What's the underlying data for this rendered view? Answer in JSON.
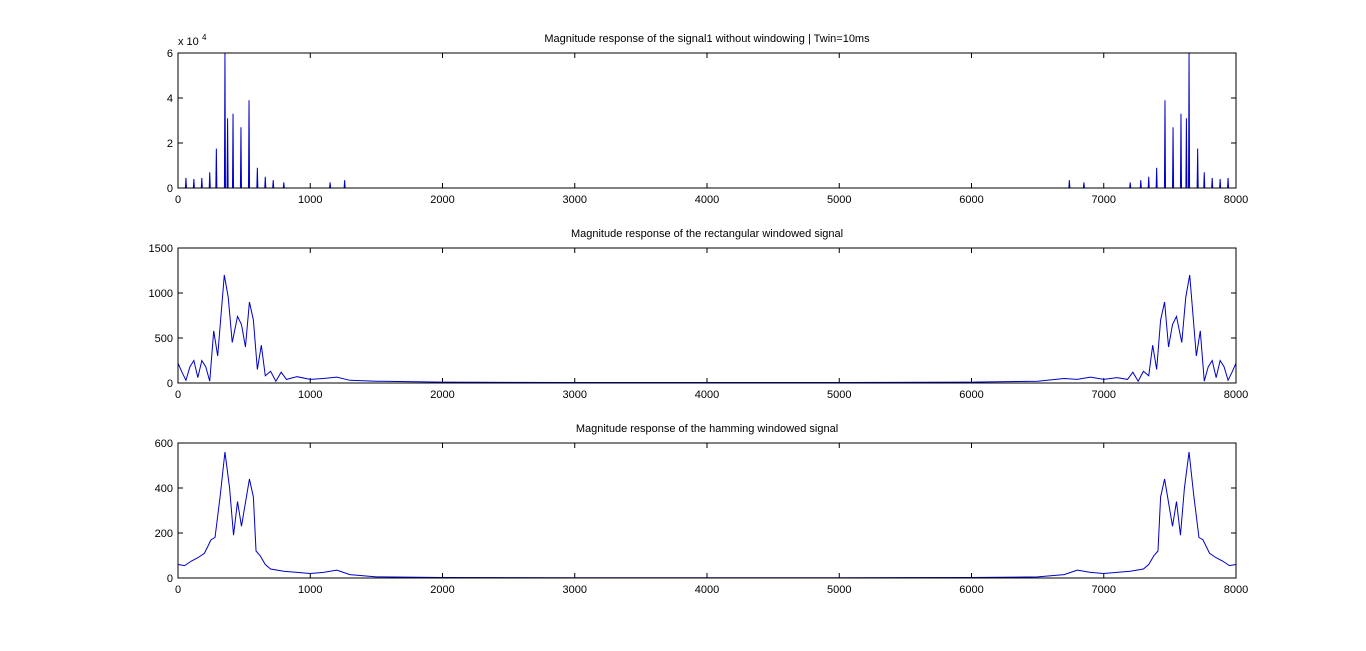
{
  "chart_data": [
    {
      "type": "line",
      "title": "Magnitude response of the signal1 without windowing | Twin=10ms",
      "y_multiplier": "x 10",
      "y_exponent": "4",
      "color": "#0000c8",
      "xlim": [
        0,
        8000
      ],
      "xticks": [
        0,
        1000,
        2000,
        3000,
        4000,
        5000,
        6000,
        7000,
        8000
      ],
      "ylim": [
        0,
        6
      ],
      "yticks": [
        0,
        2,
        4,
        6
      ],
      "x": [
        0,
        56,
        60,
        64,
        116,
        120,
        124,
        176,
        180,
        184,
        236,
        240,
        244,
        286,
        290,
        294,
        351,
        355,
        359,
        371,
        375,
        379,
        412,
        416,
        420,
        472,
        476,
        480,
        533,
        537,
        541,
        596,
        600,
        604,
        656,
        660,
        664,
        716,
        720,
        724,
        796,
        800,
        804,
        1146,
        1150,
        1154,
        1256,
        1260,
        1264,
        6736,
        6740,
        6744,
        6846,
        6850,
        6854,
        7196,
        7200,
        7204,
        7276,
        7280,
        7284,
        7336,
        7340,
        7344,
        7396,
        7400,
        7404,
        7459,
        7463,
        7467,
        7520,
        7524,
        7528,
        7580,
        7584,
        7588,
        7621,
        7625,
        7629,
        7641,
        7645,
        7649,
        7706,
        7710,
        7714,
        7756,
        7760,
        7764,
        7816,
        7820,
        7824,
        7876,
        7880,
        7884,
        7936,
        7940,
        7944,
        8000
      ],
      "values": [
        0,
        0,
        0.45,
        0,
        0,
        0.4,
        0,
        0,
        0.45,
        0,
        0,
        0.7,
        0,
        0,
        1.75,
        0,
        0,
        6,
        0,
        0,
        3.1,
        0,
        0,
        3.3,
        0,
        0,
        2.7,
        0,
        0,
        3.9,
        0,
        0,
        0.9,
        0,
        0,
        0.5,
        0,
        0,
        0.35,
        0,
        0,
        0.25,
        0,
        0,
        0.25,
        0,
        0,
        0.35,
        0,
        0,
        0.35,
        0,
        0,
        0.25,
        0,
        0,
        0.25,
        0,
        0,
        0.35,
        0,
        0,
        0.5,
        0,
        0,
        0.9,
        0,
        0,
        3.9,
        0,
        0,
        2.7,
        0,
        0,
        3.3,
        0,
        0,
        3.1,
        0,
        0,
        6,
        0,
        0,
        1.75,
        0,
        0,
        0.7,
        0,
        0,
        0.45,
        0,
        0,
        0.4,
        0,
        0,
        0.45,
        0,
        0
      ]
    },
    {
      "type": "line",
      "title": "Magnitude response of the rectangular windowed signal",
      "color": "#0000c8",
      "xlim": [
        0,
        8000
      ],
      "xticks": [
        0,
        1000,
        2000,
        3000,
        4000,
        5000,
        6000,
        7000,
        8000
      ],
      "ylim": [
        0,
        1500
      ],
      "yticks": [
        0,
        500,
        1000,
        1500
      ],
      "x": [
        0,
        30,
        60,
        90,
        120,
        150,
        180,
        210,
        240,
        270,
        300,
        350,
        380,
        410,
        450,
        480,
        510,
        540,
        570,
        600,
        630,
        660,
        700,
        740,
        780,
        820,
        900,
        1000,
        1100,
        1200,
        1300,
        1500,
        2000,
        3000,
        4000,
        5000,
        6000,
        6500,
        6700,
        6800,
        6900,
        7000,
        7100,
        7180,
        7220,
        7260,
        7300,
        7340,
        7370,
        7400,
        7430,
        7460,
        7490,
        7520,
        7550,
        7590,
        7620,
        7650,
        7700,
        7730,
        7760,
        7790,
        7820,
        7850,
        7880,
        7910,
        7940,
        7970,
        8000
      ],
      "values": [
        220,
        120,
        30,
        180,
        250,
        60,
        250,
        180,
        20,
        580,
        300,
        1200,
        950,
        450,
        740,
        650,
        400,
        900,
        700,
        150,
        420,
        80,
        130,
        20,
        120,
        40,
        70,
        40,
        50,
        65,
        30,
        20,
        10,
        5,
        5,
        5,
        10,
        20,
        50,
        40,
        65,
        40,
        60,
        40,
        120,
        20,
        130,
        80,
        420,
        150,
        700,
        900,
        400,
        650,
        740,
        450,
        950,
        1200,
        300,
        580,
        20,
        180,
        250,
        60,
        250,
        180,
        30,
        120,
        220
      ]
    },
    {
      "type": "line",
      "title": "Magnitude response of the hamming windowed signal",
      "color": "#0000c8",
      "xlim": [
        0,
        8000
      ],
      "xticks": [
        0,
        1000,
        2000,
        3000,
        4000,
        5000,
        6000,
        7000,
        8000
      ],
      "ylim": [
        0,
        600
      ],
      "yticks": [
        0,
        200,
        400,
        600
      ],
      "x": [
        0,
        50,
        100,
        150,
        200,
        250,
        280,
        320,
        355,
        390,
        420,
        450,
        480,
        540,
        570,
        590,
        620,
        660,
        700,
        800,
        900,
        1000,
        1100,
        1200,
        1300,
        1500,
        2000,
        3000,
        4000,
        5000,
        6000,
        6500,
        6700,
        6800,
        6900,
        7000,
        7100,
        7200,
        7300,
        7340,
        7380,
        7410,
        7430,
        7460,
        7520,
        7550,
        7580,
        7610,
        7645,
        7680,
        7720,
        7750,
        7800,
        7850,
        7900,
        7950,
        8000
      ],
      "values": [
        60,
        55,
        75,
        90,
        110,
        170,
        180,
        370,
        560,
        400,
        190,
        340,
        230,
        440,
        360,
        120,
        100,
        60,
        40,
        30,
        25,
        20,
        25,
        35,
        15,
        5,
        2,
        1,
        1,
        1,
        2,
        5,
        15,
        35,
        25,
        20,
        25,
        30,
        40,
        60,
        100,
        120,
        360,
        440,
        230,
        340,
        190,
        400,
        560,
        370,
        180,
        170,
        110,
        90,
        75,
        55,
        60
      ]
    }
  ]
}
